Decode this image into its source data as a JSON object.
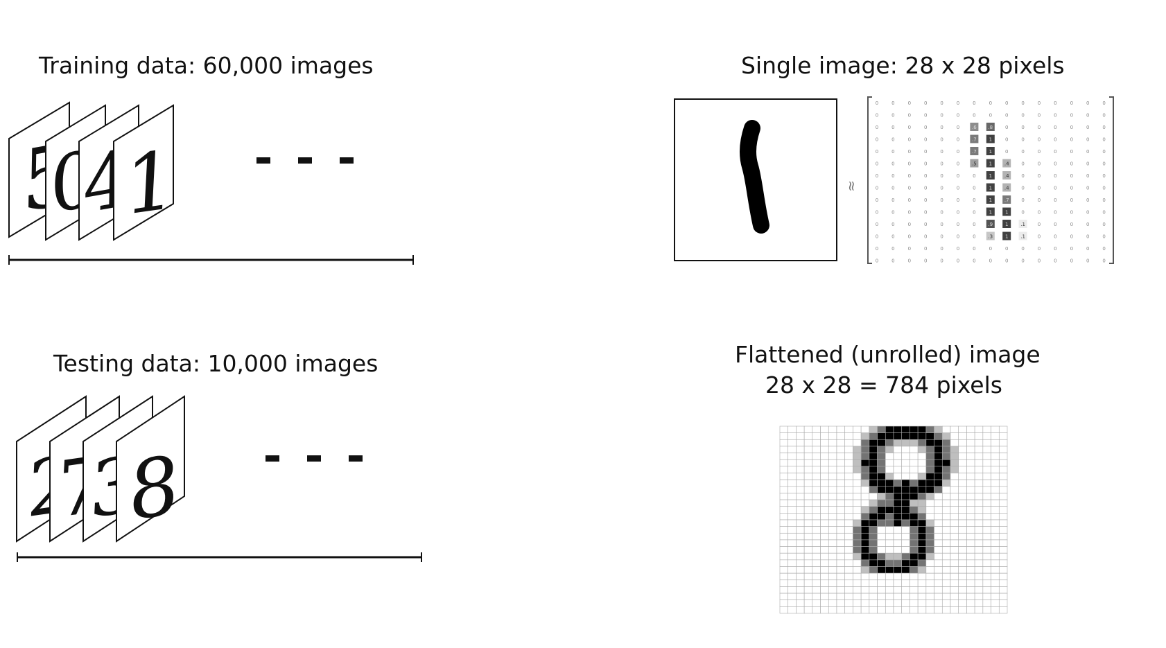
{
  "training": {
    "title": "Training data: 60,000 images",
    "digits": [
      "5",
      "0",
      "4",
      "1"
    ]
  },
  "testing": {
    "title": "Testing data: 10,000 images",
    "digits": [
      "2",
      "7",
      "3",
      "8"
    ]
  },
  "single_image": {
    "title": "Single image: 28 x 28 pixels",
    "approx_symbol": "≈",
    "matrix_highlights": [
      {
        "row": 2,
        "col": 6,
        "v": ".6"
      },
      {
        "row": 2,
        "col": 7,
        "v": ".8"
      },
      {
        "row": 3,
        "col": 6,
        "v": ".7"
      },
      {
        "row": 3,
        "col": 7,
        "v": "1"
      },
      {
        "row": 4,
        "col": 6,
        "v": ".7"
      },
      {
        "row": 4,
        "col": 7,
        "v": "1"
      },
      {
        "row": 5,
        "col": 6,
        "v": ".5"
      },
      {
        "row": 5,
        "col": 7,
        "v": "1"
      },
      {
        "row": 5,
        "col": 8,
        "v": ".4"
      },
      {
        "row": 6,
        "col": 7,
        "v": "1"
      },
      {
        "row": 6,
        "col": 8,
        "v": ".4"
      },
      {
        "row": 7,
        "col": 7,
        "v": "1"
      },
      {
        "row": 7,
        "col": 8,
        "v": ".4"
      },
      {
        "row": 8,
        "col": 7,
        "v": "1"
      },
      {
        "row": 8,
        "col": 8,
        "v": ".7"
      },
      {
        "row": 9,
        "col": 7,
        "v": "1"
      },
      {
        "row": 9,
        "col": 8,
        "v": "1"
      },
      {
        "row": 10,
        "col": 7,
        "v": ".9"
      },
      {
        "row": 10,
        "col": 8,
        "v": "1"
      },
      {
        "row": 10,
        "col": 9,
        "v": ".1"
      },
      {
        "row": 11,
        "col": 7,
        "v": ".3"
      },
      {
        "row": 11,
        "col": 8,
        "v": "1"
      },
      {
        "row": 11,
        "col": 9,
        "v": ".1"
      }
    ]
  },
  "flattened": {
    "title_line1": "Flattened (unrolled) image",
    "title_line2": "28 x 28 = 784 pixels"
  }
}
